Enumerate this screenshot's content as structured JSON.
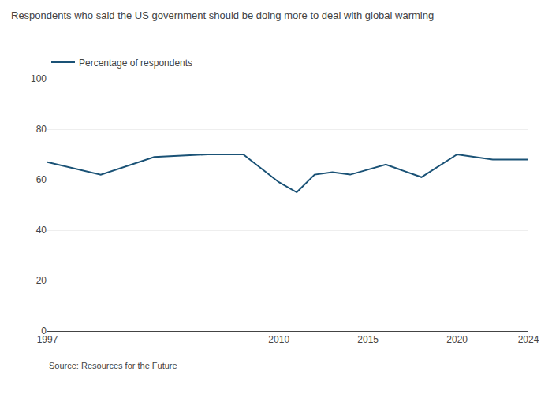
{
  "chart_data": {
    "type": "line",
    "title": "Respondents who said the US government should be doing more to deal with global warming",
    "x": [
      1997,
      2000,
      2003,
      2006,
      2008,
      2010,
      2011,
      2012,
      2013,
      2014,
      2016,
      2018,
      2020,
      2022,
      2024
    ],
    "series": [
      {
        "name": "Percentage of respondents",
        "color": "#1a5276",
        "values": [
          67,
          62,
          69,
          70,
          70,
          59,
          55,
          62,
          63,
          62,
          66,
          61,
          70,
          68,
          68
        ]
      }
    ],
    "xlim": [
      1997,
      2024
    ],
    "xticks": [
      1997,
      2010,
      2015,
      2020,
      2024
    ],
    "ylim": [
      0,
      100
    ],
    "yticks": [
      0,
      20,
      40,
      60,
      80,
      100
    ],
    "grid": true,
    "legend": "upper left",
    "annotations": [
      "Source: Resources for the Future"
    ]
  }
}
